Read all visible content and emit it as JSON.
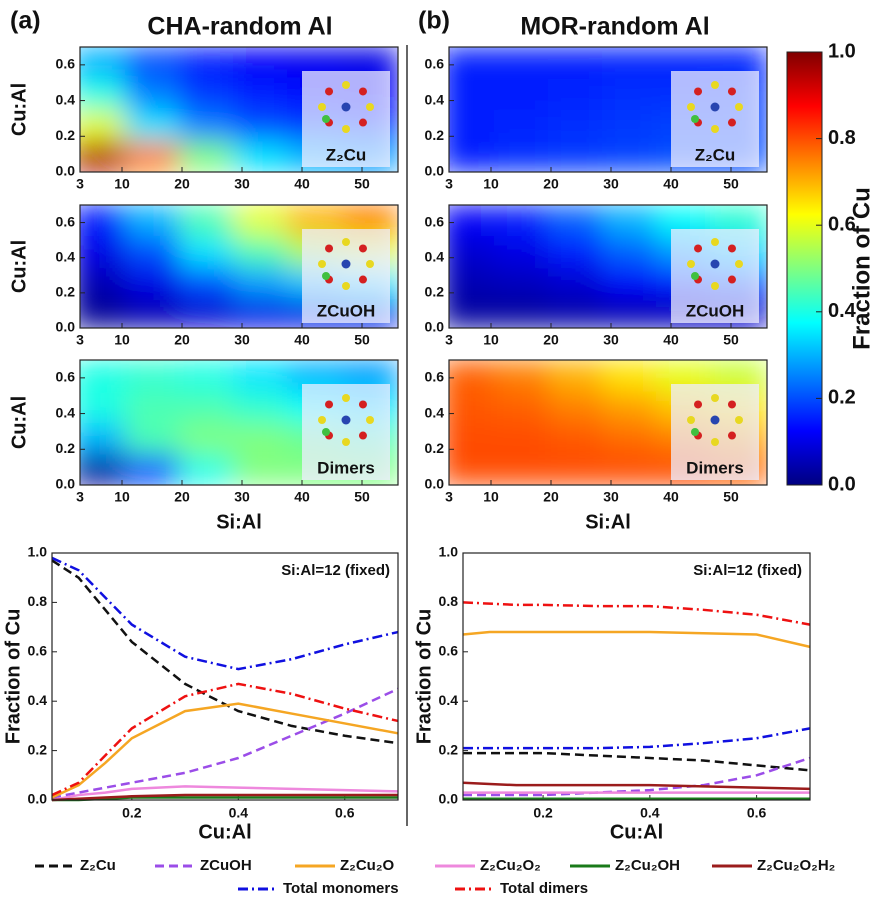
{
  "columns": [
    {
      "label": "(a)",
      "title": "CHA-random Al"
    },
    {
      "label": "(b)",
      "title": "MOR-random Al"
    }
  ],
  "legend": [
    {
      "name": "Z₂Cu",
      "color": "#111111",
      "dash": "dash"
    },
    {
      "name": "ZCuOH",
      "color": "#9b4de8",
      "dash": "dash"
    },
    {
      "name": "Z₂Cu₂O",
      "color": "#f5a623",
      "dash": "solid"
    },
    {
      "name": "Z₂Cu₂O₂",
      "color": "#ee88dd",
      "dash": "solid"
    },
    {
      "name": "Z₂Cu₂OH",
      "color": "#1a7a1a",
      "dash": "solid"
    },
    {
      "name": "Z₂Cu₂O₂H₂",
      "color": "#9b1c1c",
      "dash": "solid"
    },
    {
      "name": "Total monomers",
      "color": "#1010e0",
      "dash": "dashdot"
    },
    {
      "name": "Total dimers",
      "color": "#ee1111",
      "dash": "dashdot"
    }
  ],
  "chart_data": [
    {
      "type": "heatmap",
      "label": "Z₂Cu",
      "ylabel": "Cu:Al",
      "x": [
        6,
        15,
        24,
        33,
        42,
        51
      ],
      "y": [
        0.0875,
        0.2625,
        0.4375,
        0.6125
      ],
      "z": [
        [
          0.95,
          0.75,
          0.5,
          0.35,
          0.3,
          0.28
        ],
        [
          0.6,
          0.35,
          0.25,
          0.2,
          0.18,
          0.16
        ],
        [
          0.4,
          0.25,
          0.18,
          0.15,
          0.13,
          0.12
        ],
        [
          0.3,
          0.2,
          0.15,
          0.12,
          0.11,
          0.1
        ]
      ],
      "xlim": [
        3,
        56
      ],
      "ylim": [
        0,
        0.7
      ],
      "xticks": [
        3,
        10,
        20,
        30,
        40,
        50
      ],
      "yticks": [
        {
          "value": 0,
          "label": "0.0"
        },
        {
          "value": 0.2,
          "label": "0.2"
        },
        {
          "value": 0.4,
          "label": "0.4"
        },
        {
          "value": 0.6,
          "label": "0.6"
        }
      ]
    },
    {
      "type": "heatmap",
      "label": "ZCuOH",
      "ylabel": "Cu:Al",
      "x": [
        6,
        15,
        24,
        33,
        42,
        51
      ],
      "y": [
        0.0875,
        0.2625,
        0.4375,
        0.6125
      ],
      "z": [
        [
          0.02,
          0.05,
          0.08,
          0.1,
          0.1,
          0.1
        ],
        [
          0.05,
          0.1,
          0.2,
          0.28,
          0.32,
          0.35
        ],
        [
          0.1,
          0.2,
          0.35,
          0.45,
          0.55,
          0.6
        ],
        [
          0.15,
          0.3,
          0.45,
          0.6,
          0.7,
          0.75
        ]
      ],
      "xlim": [
        3,
        56
      ],
      "ylim": [
        0,
        0.7
      ],
      "xticks": [
        3,
        10,
        20,
        30,
        40,
        50
      ],
      "yticks": [
        {
          "value": 0,
          "label": "0.0"
        },
        {
          "value": 0.2,
          "label": "0.2"
        },
        {
          "value": 0.4,
          "label": "0.4"
        },
        {
          "value": 0.6,
          "label": "0.6"
        }
      ]
    },
    {
      "type": "heatmap",
      "label": "Dimers",
      "ylabel": "Cu:Al",
      "xlabel": "Si:Al",
      "x": [
        6,
        15,
        24,
        33,
        42,
        51
      ],
      "y": [
        0.0875,
        0.2625,
        0.4375,
        0.6125
      ],
      "z": [
        [
          0.03,
          0.2,
          0.4,
          0.5,
          0.5,
          0.5
        ],
        [
          0.3,
          0.45,
          0.5,
          0.5,
          0.48,
          0.45
        ],
        [
          0.4,
          0.45,
          0.45,
          0.42,
          0.38,
          0.35
        ],
        [
          0.4,
          0.42,
          0.4,
          0.35,
          0.3,
          0.28
        ]
      ],
      "xlim": [
        3,
        56
      ],
      "ylim": [
        0,
        0.7
      ],
      "xticks": [
        3,
        10,
        20,
        30,
        40,
        50
      ],
      "yticks": [
        {
          "value": 0,
          "label": "0.0"
        },
        {
          "value": 0.2,
          "label": "0.2"
        },
        {
          "value": 0.4,
          "label": "0.4"
        },
        {
          "value": 0.6,
          "label": "0.6"
        }
      ]
    },
    {
      "type": "heatmap",
      "label": "Z₂Cu",
      "x": [
        6,
        15,
        24,
        33,
        42,
        51
      ],
      "y": [
        0.0875,
        0.2625,
        0.4375,
        0.6125
      ],
      "z": [
        [
          0.15,
          0.17,
          0.18,
          0.19,
          0.2,
          0.2
        ],
        [
          0.15,
          0.16,
          0.17,
          0.18,
          0.19,
          0.19
        ],
        [
          0.15,
          0.15,
          0.16,
          0.17,
          0.17,
          0.18
        ],
        [
          0.15,
          0.15,
          0.15,
          0.16,
          0.16,
          0.16
        ]
      ],
      "xlim": [
        3,
        56
      ],
      "ylim": [
        0,
        0.7
      ],
      "xticks": [
        3,
        10,
        20,
        30,
        40,
        50
      ],
      "yticks": [
        {
          "value": 0,
          "label": "0.0"
        },
        {
          "value": 0.2,
          "label": "0.2"
        },
        {
          "value": 0.4,
          "label": "0.4"
        },
        {
          "value": 0.6,
          "label": "0.6"
        }
      ]
    },
    {
      "type": "heatmap",
      "label": "ZCuOH",
      "x": [
        6,
        15,
        24,
        33,
        42,
        51
      ],
      "y": [
        0.0875,
        0.2625,
        0.4375,
        0.6125
      ],
      "z": [
        [
          0.03,
          0.03,
          0.04,
          0.05,
          0.06,
          0.07
        ],
        [
          0.05,
          0.06,
          0.08,
          0.12,
          0.15,
          0.18
        ],
        [
          0.08,
          0.1,
          0.15,
          0.22,
          0.28,
          0.33
        ],
        [
          0.12,
          0.15,
          0.22,
          0.3,
          0.38,
          0.42
        ]
      ],
      "xlim": [
        3,
        56
      ],
      "ylim": [
        0,
        0.7
      ],
      "xticks": [
        3,
        10,
        20,
        30,
        40,
        50
      ],
      "yticks": [
        {
          "value": 0,
          "label": "0.0"
        },
        {
          "value": 0.2,
          "label": "0.2"
        },
        {
          "value": 0.4,
          "label": "0.4"
        },
        {
          "value": 0.6,
          "label": "0.6"
        }
      ]
    },
    {
      "type": "heatmap",
      "label": "Dimers",
      "xlabel": "Si:Al",
      "x": [
        6,
        15,
        24,
        33,
        42,
        51
      ],
      "y": [
        0.0875,
        0.2625,
        0.4375,
        0.6125
      ],
      "z": [
        [
          0.8,
          0.8,
          0.8,
          0.8,
          0.8,
          0.78
        ],
        [
          0.8,
          0.8,
          0.79,
          0.77,
          0.75,
          0.72
        ],
        [
          0.79,
          0.78,
          0.75,
          0.72,
          0.68,
          0.65
        ],
        [
          0.78,
          0.75,
          0.7,
          0.65,
          0.6,
          0.57
        ]
      ],
      "xlim": [
        3,
        56
      ],
      "ylim": [
        0,
        0.7
      ],
      "xticks": [
        3,
        10,
        20,
        30,
        40,
        50
      ],
      "yticks": [
        {
          "value": 0,
          "label": "0.0"
        },
        {
          "value": 0.2,
          "label": "0.2"
        },
        {
          "value": 0.4,
          "label": "0.4"
        },
        {
          "value": 0.6,
          "label": "0.6"
        }
      ]
    },
    {
      "type": "colorbar",
      "colormap": "jet",
      "label": "Fraction of Cu",
      "ylim": [
        0,
        1
      ],
      "yticks": [
        {
          "value": 0,
          "label": "0.0"
        },
        {
          "value": 0.2,
          "label": "0.2"
        },
        {
          "value": 0.4,
          "label": "0.4"
        },
        {
          "value": 0.6,
          "label": "0.6"
        },
        {
          "value": 0.8,
          "label": "0.8"
        },
        {
          "value": 1,
          "label": "1.0"
        }
      ]
    },
    {
      "type": "line",
      "annotation": "Si:Al=12 (fixed)",
      "xlabel": "Cu:Al",
      "ylabel": "Fraction of Cu",
      "x": [
        0.05,
        0.1,
        0.15,
        0.2,
        0.3,
        0.4,
        0.5,
        0.6,
        0.7
      ],
      "series": [
        {
          "values": [
            0.97,
            0.9,
            0.77,
            0.64,
            0.47,
            0.36,
            0.3,
            0.26,
            0.23
          ]
        },
        {
          "values": [
            0.01,
            0.03,
            0.05,
            0.07,
            0.11,
            0.17,
            0.26,
            0.35,
            0.45
          ]
        },
        {
          "values": [
            0.01,
            0.06,
            0.15,
            0.25,
            0.36,
            0.39,
            0.35,
            0.31,
            0.27
          ]
        },
        {
          "values": [
            0,
            0.02,
            0.03,
            0.045,
            0.055,
            0.05,
            0.045,
            0.04,
            0.035
          ]
        },
        {
          "values": [
            0,
            0,
            0.005,
            0.01,
            0.01,
            0.01,
            0.01,
            0.01,
            0.01
          ]
        },
        {
          "values": [
            0,
            0.005,
            0.01,
            0.015,
            0.02,
            0.02,
            0.02,
            0.02,
            0.02
          ]
        },
        {
          "values": [
            0.98,
            0.93,
            0.82,
            0.71,
            0.58,
            0.53,
            0.57,
            0.63,
            0.68
          ]
        },
        {
          "values": [
            0.02,
            0.07,
            0.18,
            0.29,
            0.42,
            0.47,
            0.43,
            0.37,
            0.32
          ]
        }
      ],
      "xlim": [
        0.05,
        0.7
      ],
      "ylim": [
        0,
        1
      ],
      "xticks": [
        {
          "value": 0.2,
          "label": "0.2"
        },
        {
          "value": 0.4,
          "label": "0.4"
        },
        {
          "value": 0.6,
          "label": "0.6"
        }
      ],
      "yticks": [
        {
          "value": 0,
          "label": "0.0"
        },
        {
          "value": 0.2,
          "label": "0.2"
        },
        {
          "value": 0.4,
          "label": "0.4"
        },
        {
          "value": 0.6,
          "label": "0.6"
        },
        {
          "value": 0.8,
          "label": "0.8"
        },
        {
          "value": 1,
          "label": "1.0"
        }
      ]
    },
    {
      "type": "line",
      "annotation": "Si:Al=12 (fixed)",
      "xlabel": "Cu:Al",
      "ylabel": "Fraction of Cu",
      "x": [
        0.05,
        0.1,
        0.15,
        0.2,
        0.3,
        0.4,
        0.5,
        0.6,
        0.7
      ],
      "series": [
        {
          "values": [
            0.19,
            0.19,
            0.19,
            0.19,
            0.18,
            0.17,
            0.16,
            0.14,
            0.12
          ]
        },
        {
          "values": [
            0.02,
            0.02,
            0.02,
            0.02,
            0.03,
            0.04,
            0.06,
            0.1,
            0.17
          ]
        },
        {
          "values": [
            0.67,
            0.68,
            0.68,
            0.68,
            0.68,
            0.68,
            0.675,
            0.67,
            0.62
          ]
        },
        {
          "values": [
            0.03,
            0.03,
            0.03,
            0.03,
            0.03,
            0.03,
            0.03,
            0.03,
            0.03
          ]
        },
        {
          "values": [
            0.005,
            0.005,
            0.005,
            0.005,
            0.005,
            0.005,
            0.005,
            0.005,
            0.005
          ]
        },
        {
          "values": [
            0.07,
            0.065,
            0.06,
            0.06,
            0.06,
            0.06,
            0.055,
            0.05,
            0.045
          ]
        },
        {
          "values": [
            0.21,
            0.21,
            0.21,
            0.21,
            0.21,
            0.215,
            0.23,
            0.25,
            0.29
          ]
        },
        {
          "values": [
            0.8,
            0.795,
            0.79,
            0.79,
            0.785,
            0.785,
            0.77,
            0.75,
            0.71
          ]
        }
      ],
      "xlim": [
        0.05,
        0.7
      ],
      "ylim": [
        0,
        1
      ],
      "xticks": [
        {
          "value": 0.2,
          "label": "0.2"
        },
        {
          "value": 0.4,
          "label": "0.4"
        },
        {
          "value": 0.6,
          "label": "0.6"
        }
      ],
      "yticks": [
        {
          "value": 0,
          "label": "0.0"
        },
        {
          "value": 0.2,
          "label": "0.2"
        },
        {
          "value": 0.4,
          "label": "0.4"
        },
        {
          "value": 0.6,
          "label": "0.6"
        },
        {
          "value": 0.8,
          "label": "0.8"
        },
        {
          "value": 1,
          "label": "1.0"
        }
      ]
    }
  ]
}
